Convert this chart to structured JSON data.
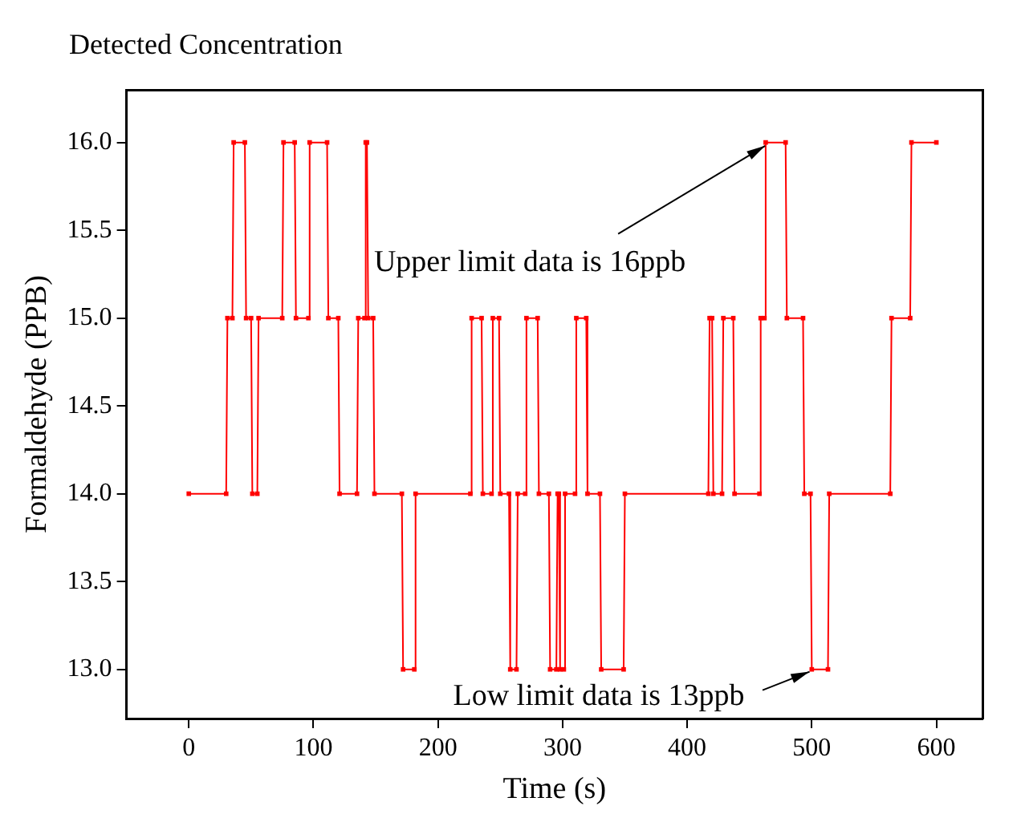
{
  "chart_data": {
    "type": "line",
    "xlabel": "Time (s)",
    "ylabel": "Formaldehyde (PPB)",
    "xlim": [
      -50,
      637
    ],
    "xticks": [
      0,
      100,
      200,
      300,
      400,
      500,
      600
    ],
    "ylim": [
      12.72,
      16.3
    ],
    "yticks": [
      {
        "value": 13,
        "label": "13.0"
      },
      {
        "value": 13.5,
        "label": "13.5"
      },
      {
        "value": 14,
        "label": "14.0"
      },
      {
        "value": 14.5,
        "label": "14.5"
      },
      {
        "value": 15,
        "label": "15.0"
      },
      {
        "value": 15.5,
        "label": "15.5"
      },
      {
        "value": 16,
        "label": "16.0"
      }
    ],
    "grid": false,
    "legend": "top left",
    "marker": "square",
    "line_style": "solid",
    "annotations": [
      {
        "text": "Upper limit data is 16ppb",
        "x": 467,
        "y": 16
      },
      {
        "text": "Low limit data is 13ppb",
        "x": 503,
        "y": 13
      }
    ],
    "series": [
      {
        "name": "Detected Concentration",
        "color": "#ff0000",
        "x": [
          0,
          30,
          31,
          35,
          36,
          45,
          46,
          50,
          51,
          55,
          56,
          75,
          76,
          85,
          86,
          96,
          97,
          111,
          112,
          120,
          121,
          135,
          136,
          141,
          142,
          143,
          144,
          148,
          149,
          171,
          172,
          181,
          182,
          226,
          227,
          235,
          236,
          243,
          244,
          249,
          250,
          257,
          258,
          263,
          264,
          270,
          271,
          280,
          281,
          289,
          290,
          295,
          296,
          297,
          298,
          301,
          302,
          310,
          311,
          319,
          320,
          330,
          331,
          349,
          350,
          417,
          418,
          420,
          421,
          428,
          429,
          437,
          438,
          458,
          459,
          462,
          463,
          479,
          480,
          493,
          494,
          499,
          500,
          513,
          514,
          563,
          564,
          579,
          580,
          600
        ],
        "values": [
          14,
          14,
          15,
          15,
          16,
          16,
          15,
          15,
          14,
          14,
          15,
          15,
          16,
          16,
          15,
          15,
          16,
          16,
          15,
          15,
          14,
          14,
          15,
          15,
          16,
          16,
          15,
          15,
          14,
          14,
          13,
          13,
          14,
          14,
          15,
          15,
          14,
          14,
          15,
          15,
          14,
          14,
          13,
          13,
          14,
          14,
          15,
          15,
          14,
          14,
          13,
          13,
          14,
          14,
          13,
          13,
          14,
          14,
          15,
          15,
          14,
          14,
          13,
          13,
          14,
          14,
          15,
          15,
          14,
          14,
          15,
          15,
          14,
          14,
          15,
          15,
          16,
          16,
          15,
          15,
          14,
          14,
          13,
          13,
          14,
          14,
          15,
          15,
          16,
          16
        ]
      }
    ]
  }
}
